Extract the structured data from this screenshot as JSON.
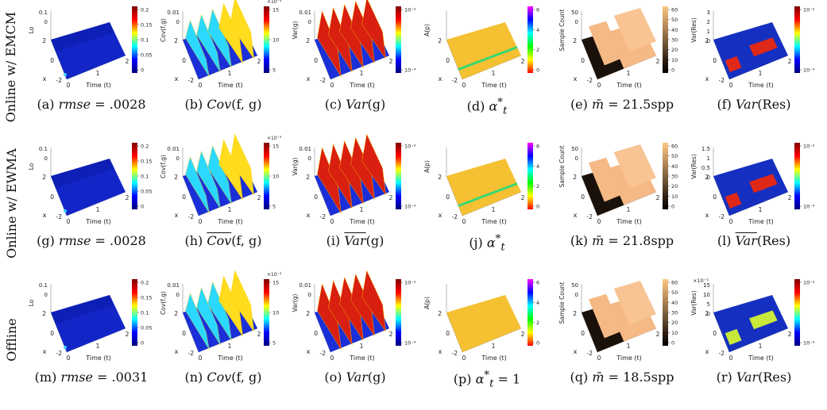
{
  "row_labels": [
    "Online w/ EMCM",
    "Online w/ EWMA",
    "Offline"
  ],
  "axes": {
    "time_label": "Time (t)",
    "x_label": "x",
    "x_ticks": [
      "2",
      "0",
      "-2"
    ],
    "time_ticks": [
      "0",
      "1",
      "2"
    ]
  },
  "panels": [
    {
      "cap_pre": "(a) ",
      "cap_math": "rmse",
      "cap_post": " = .0028",
      "zlabel": "Lo",
      "zticks": [
        "0.1",
        "0"
      ],
      "cbar_ticks": [
        "0.2",
        "0.15",
        "0.1",
        "0.05",
        "0"
      ],
      "cbar_exp": "",
      "cmap": "jet",
      "cmap_scale": "linear",
      "surface": "flat"
    },
    {
      "cap_pre": "(b) ",
      "cap_math": "Cov",
      "cap_post": "(f, g)",
      "zlabel": "Cov(f,g)",
      "zticks": [
        "0.01",
        "0"
      ],
      "cbar_ticks": [
        "15",
        "10",
        "5"
      ],
      "cbar_exp": "×10⁻³",
      "cmap": "jet",
      "cmap_scale": "linear",
      "surface": "ridges"
    },
    {
      "cap_pre": "(c) ",
      "cap_math": "Var",
      "cap_post": "(g)",
      "zlabel": "Var(g)",
      "zticks": [
        "0.01",
        "0"
      ],
      "cbar_ticks": [
        "10⁻²",
        "10⁻⁴"
      ],
      "cbar_exp": "",
      "cmap": "jet",
      "cmap_scale": "log",
      "surface": "ridges"
    },
    {
      "cap_pre": "(d) ",
      "cap_math": "α",
      "cap_post": "",
      "sub": "t",
      "sup": "*",
      "zlabel": "A(p)",
      "zticks": [],
      "cbar_ticks": [
        "6",
        "4",
        "2",
        "0"
      ],
      "cbar_exp": "",
      "cmap": "hsv",
      "cmap_scale": "linear",
      "surface": "plane_band"
    },
    {
      "cap_pre": "(e) ",
      "cap_math": "m̄",
      "cap_post": " = 21.5spp",
      "zlabel": "Sample Count",
      "zticks": [
        "50",
        "0"
      ],
      "cbar_ticks": [
        "60",
        "50",
        "40",
        "30",
        "20",
        "10",
        "0"
      ],
      "cbar_exp": "",
      "cmap": "copper",
      "cmap_scale": "linear",
      "surface": "blocks"
    },
    {
      "cap_pre": "(f) ",
      "cap_math": "Var",
      "cap_post": "(Res)",
      "zlabel": "Var(Res)",
      "zticks": [
        "3",
        "2",
        "1",
        "0"
      ],
      "cbar_ticks": [
        "10⁻²",
        "10⁻⁴"
      ],
      "cbar_exp": "",
      "cmap": "jet",
      "cmap_scale": "log",
      "surface": "heat"
    },
    {
      "cap_pre": "(g) ",
      "cap_math": "rmse",
      "cap_post": " = .0028",
      "zlabel": "Lo",
      "zticks": [
        "0.1",
        "0"
      ],
      "cbar_ticks": [
        "0.2",
        "0.15",
        "0.1",
        "0.05",
        "0"
      ],
      "cbar_exp": "",
      "cmap": "jet",
      "cmap_scale": "linear",
      "surface": "flat"
    },
    {
      "cap_pre": "(h) ",
      "cap_math": "Cov",
      "cap_post": "(f, g)",
      "tilde": true,
      "zlabel": "Cov(f,g)",
      "zticks": [
        "0.01",
        "0"
      ],
      "cbar_ticks": [
        "15",
        "10",
        "5"
      ],
      "cbar_exp": "×10⁻³",
      "cmap": "jet",
      "cmap_scale": "linear",
      "surface": "ridges"
    },
    {
      "cap_pre": "(i) ",
      "cap_math": "Var",
      "cap_post": "(g)",
      "tilde": true,
      "zlabel": "Var(g)",
      "zticks": [
        "0.01",
        "0"
      ],
      "cbar_ticks": [
        "10⁻²",
        "10⁻⁴"
      ],
      "cbar_exp": "",
      "cmap": "jet",
      "cmap_scale": "log",
      "surface": "ridges"
    },
    {
      "cap_pre": "(j) ",
      "cap_math": "α",
      "cap_post": "",
      "sub": "t",
      "sup": "*",
      "zlabel": "A(p)",
      "zticks": [],
      "cbar_ticks": [
        "6",
        "4",
        "2",
        "0"
      ],
      "cbar_exp": "",
      "cmap": "hsv",
      "cmap_scale": "linear",
      "surface": "plane_band"
    },
    {
      "cap_pre": "(k) ",
      "cap_math": "m̄",
      "cap_post": " = 21.8spp",
      "zlabel": "Sample Count",
      "zticks": [
        "50",
        "0"
      ],
      "cbar_ticks": [
        "60",
        "50",
        "40",
        "30",
        "20",
        "10",
        "0"
      ],
      "cbar_exp": "",
      "cmap": "copper",
      "cmap_scale": "linear",
      "surface": "blocks"
    },
    {
      "cap_pre": "(l) ",
      "cap_math": "Var",
      "cap_post": "(Res)",
      "tilde": true,
      "zlabel": "Var(Res)",
      "zticks": [
        "1.5",
        "1",
        "0.5",
        "0"
      ],
      "cbar_ticks": [
        "10⁻²",
        "10⁻⁴"
      ],
      "cbar_exp": "",
      "cmap": "jet",
      "cmap_scale": "log",
      "surface": "heat"
    },
    {
      "cap_pre": "(m) ",
      "cap_math": "rmse",
      "cap_post": " = .0031",
      "zlabel": "Lo",
      "zticks": [
        "0.1",
        "0"
      ],
      "cbar_ticks": [
        "0.2",
        "0.15",
        "0.1",
        "0.05",
        "0"
      ],
      "cbar_exp": "",
      "cmap": "jet",
      "cmap_scale": "linear",
      "surface": "flat"
    },
    {
      "cap_pre": "(n) ",
      "cap_math": "Cov",
      "cap_post": "(f, g)",
      "zlabel": "Cov(f,g)",
      "zticks": [
        "0.01",
        "0"
      ],
      "cbar_ticks": [
        "15",
        "10",
        "5"
      ],
      "cbar_exp": "×10⁻³",
      "cmap": "jet",
      "cmap_scale": "linear",
      "surface": "ridges"
    },
    {
      "cap_pre": "(o) ",
      "cap_math": "Var",
      "cap_post": "(g)",
      "zlabel": "Var(g)",
      "zticks": [
        "0.01",
        "0"
      ],
      "cbar_ticks": [
        "10⁻²",
        "10⁻⁴"
      ],
      "cbar_exp": "",
      "cmap": "jet",
      "cmap_scale": "log",
      "surface": "ridges"
    },
    {
      "cap_pre": "(p) ",
      "cap_math": "α",
      "cap_post": " = 1",
      "sub": "t",
      "sup": "*",
      "zlabel": "A(p)",
      "zticks": [],
      "cbar_ticks": [
        "6",
        "4",
        "2",
        "0"
      ],
      "cbar_exp": "",
      "cmap": "hsv",
      "cmap_scale": "linear",
      "surface": "plane"
    },
    {
      "cap_pre": "(q) ",
      "cap_math": "m̄",
      "cap_post": " = 18.5spp",
      "zlabel": "Sample Count",
      "zticks": [
        "50",
        "0"
      ],
      "cbar_ticks": [
        "60",
        "50",
        "40",
        "30",
        "20",
        "10",
        "0"
      ],
      "cbar_exp": "",
      "cmap": "copper",
      "cmap_scale": "linear",
      "surface": "blocks"
    },
    {
      "cap_pre": "(r) ",
      "cap_math": "Var",
      "cap_post": "(Res)",
      "zlabel": "Var(Res)",
      "zticks": [
        "15",
        "10",
        "5",
        "0"
      ],
      "zexp": "×10⁻³",
      "cbar_ticks": [
        "10⁻²",
        "10⁻⁴"
      ],
      "cbar_exp": "",
      "cmap": "jet",
      "cmap_scale": "log",
      "surface": "heat_low"
    }
  ]
}
